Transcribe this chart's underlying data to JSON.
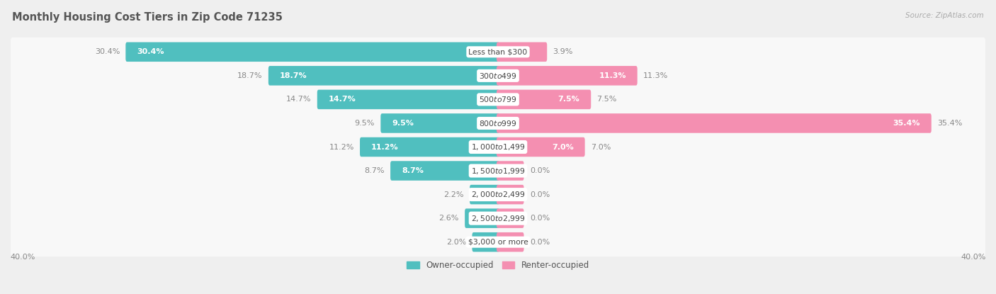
{
  "title": "Monthly Housing Cost Tiers in Zip Code 71235",
  "source": "Source: ZipAtlas.com",
  "categories": [
    "Less than $300",
    "$300 to $499",
    "$500 to $799",
    "$800 to $999",
    "$1,000 to $1,499",
    "$1,500 to $1,999",
    "$2,000 to $2,499",
    "$2,500 to $2,999",
    "$3,000 or more"
  ],
  "owner_values": [
    30.4,
    18.7,
    14.7,
    9.5,
    11.2,
    8.7,
    2.2,
    2.6,
    2.0
  ],
  "renter_values": [
    3.9,
    11.3,
    7.5,
    35.4,
    7.0,
    0.0,
    0.0,
    0.0,
    0.0
  ],
  "owner_color": "#50BFBF",
  "renter_color": "#F48FB1",
  "axis_max": 40.0,
  "bg_color": "#efefef",
  "row_bg_color": "#f8f8f8",
  "legend_owner": "Owner-occupied",
  "legend_renter": "Renter-occupied"
}
